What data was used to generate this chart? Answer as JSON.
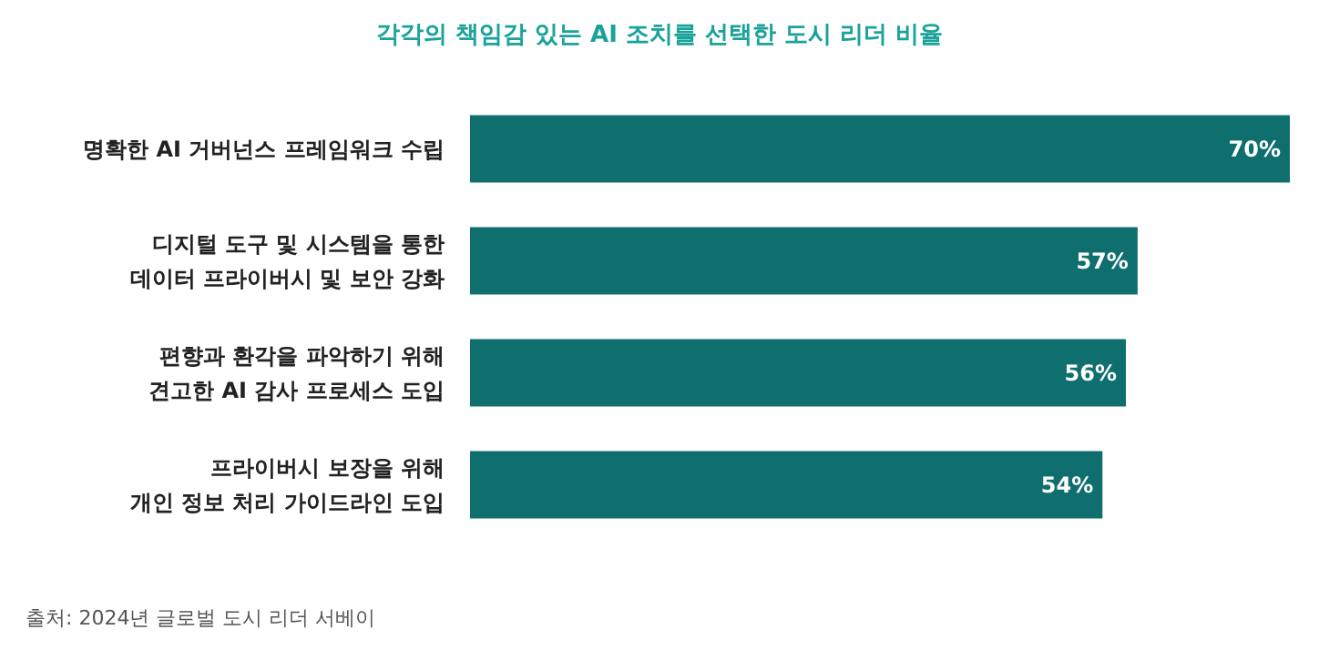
{
  "chart_data": {
    "type": "bar",
    "orientation": "horizontal",
    "title": "각각의 책임감 있는 AI 조치를 선택한 도시 리더 비율",
    "categories": [
      "명확한 AI 거버넌스 프레임워크 수립",
      "디지털 도구 및 시스템을 통한\n데이터 프라이버시 및 보안 강화",
      "편향과 환각을 파악하기 위해\n견고한 AI 감사 프로세스 도입",
      "프라이버시 보장을 위해\n개인 정보 처리 가이드라인 도입"
    ],
    "values": [
      70,
      57,
      56,
      54
    ],
    "value_labels": [
      "70%",
      "57%",
      "56%",
      "54%"
    ],
    "color": "#0f6e6e",
    "annotations": [
      "출처: 2024년 글로벌 도시 리더 서베이"
    ]
  }
}
